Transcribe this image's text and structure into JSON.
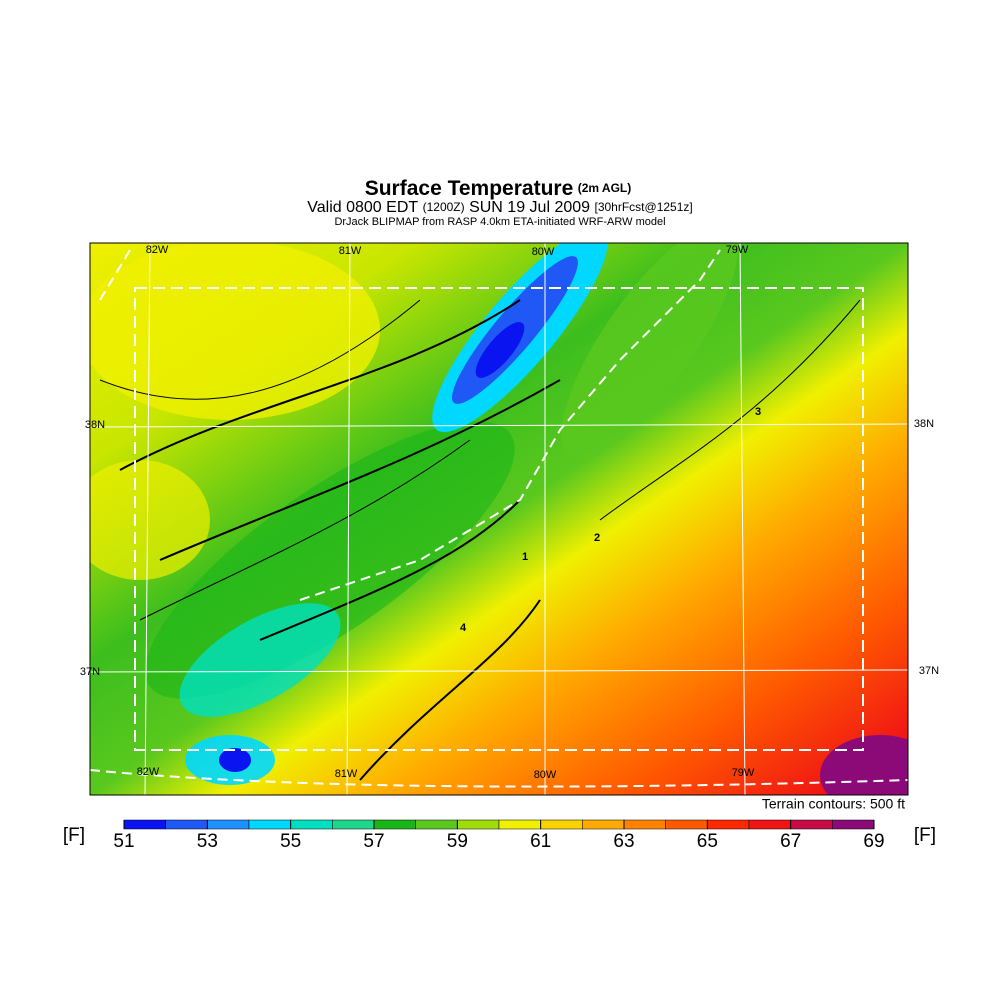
{
  "title": "Surface Temperature",
  "title_note": "(2m AGL)",
  "subtitle": {
    "valid": "Valid 0800 EDT",
    "zulu": "(1200Z)",
    "date": "SUN 19 Jul 2009",
    "forecast": "[30hrFcst@1251z]"
  },
  "source": "DrJack BLIPMAP from RASP 4.0km ETA-initiated WRF-ARW model",
  "longitudes_top": [
    "82W",
    "81W",
    "80W",
    "79W"
  ],
  "longitudes_bottom": [
    "82W",
    "81W",
    "80W",
    "79W"
  ],
  "latitudes_left": [
    "38N",
    "37N"
  ],
  "latitudes_right": [
    "38N",
    "37N"
  ],
  "contour_labels": [
    "1",
    "2",
    "3",
    "4"
  ],
  "terrain_note": "Terrain contours: 500 ft",
  "colorbar": {
    "unit": "[F]",
    "ticks": [
      51,
      53,
      55,
      57,
      59,
      61,
      63,
      65,
      67,
      69
    ],
    "min": 51,
    "max": 69,
    "colors": [
      "#0a14f0",
      "#1f58f5",
      "#1e90ff",
      "#00d8ff",
      "#00e0c0",
      "#1ed68c",
      "#18b418",
      "#5ac81e",
      "#a0dc0a",
      "#f0f000",
      "#fad200",
      "#ffaa00",
      "#ff8200",
      "#ff5a00",
      "#ff2800",
      "#f01414",
      "#c80a46",
      "#8c0a78"
    ]
  }
}
